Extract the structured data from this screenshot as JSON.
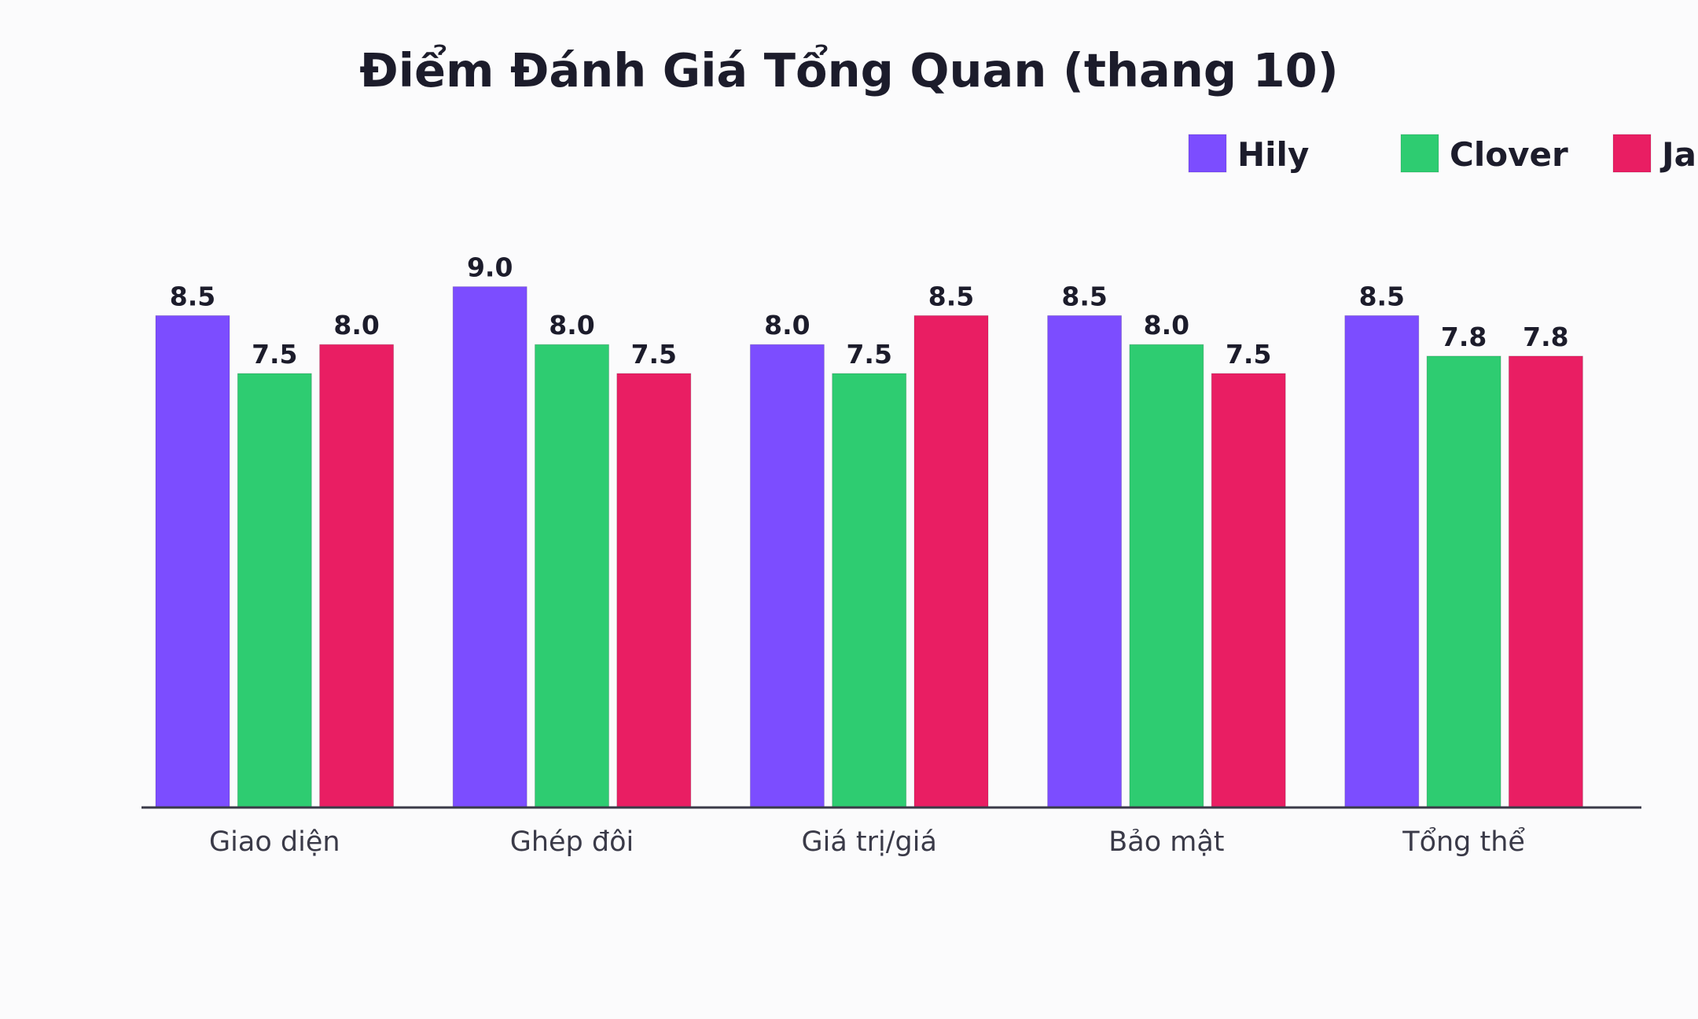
{
  "chart_data": {
    "type": "bar",
    "title": "Điểm Đánh Giá Tổng Quan (thang 10)",
    "xlabel": "",
    "ylabel": "",
    "categories": [
      "Giao diện",
      "Ghép đôi",
      "Giá trị/giá",
      "Bảo mật",
      "Tổng thể"
    ],
    "series": [
      {
        "name": "Hily",
        "color": "#7c4dff",
        "values": [
          8.5,
          9.0,
          8.0,
          8.5,
          8.5
        ],
        "labels": [
          "8.5",
          "9.0",
          "8.0",
          "8.5",
          "8.5"
        ]
      },
      {
        "name": "Clover",
        "color": "#2ecc71",
        "values": [
          7.5,
          8.0,
          7.5,
          8.0,
          7.8
        ],
        "labels": [
          "7.5",
          "8.0",
          "7.5",
          "8.0",
          "7.8"
        ]
      },
      {
        "name": "Jau",
        "color": "#e91e63",
        "values": [
          8.0,
          7.5,
          8.5,
          7.5,
          7.8
        ],
        "labels": [
          "8.0",
          "7.5",
          "8.5",
          "7.5",
          "7.8"
        ]
      }
    ],
    "ylim": [
      0,
      9.0
    ],
    "grid": false,
    "legend": "top-right",
    "axis_color": "#3a3a48"
  }
}
